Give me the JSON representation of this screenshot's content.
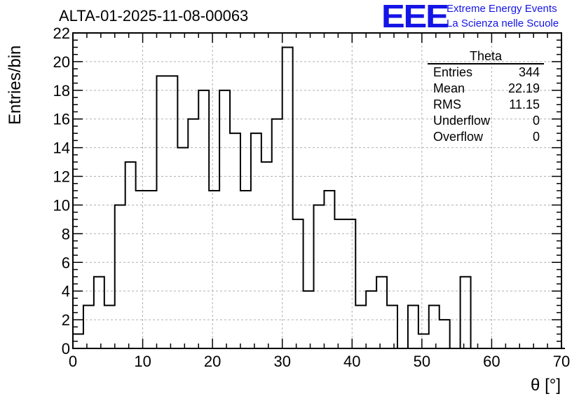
{
  "header": {
    "title": "ALTA-01-2025-11-08-00063",
    "logo_text": "EEE",
    "org_line1": "Extreme Energy Events",
    "org_line2": "La Scienza nelle Scuole"
  },
  "stats_box": {
    "title": "Theta",
    "rows": [
      {
        "label": "Entries",
        "value": "344"
      },
      {
        "label": "Mean",
        "value": "22.19"
      },
      {
        "label": "RMS",
        "value": "11.15"
      },
      {
        "label": "Underflow",
        "value": "0"
      },
      {
        "label": "Overflow",
        "value": "0"
      }
    ]
  },
  "colors": {
    "accent": "#1414e6",
    "line": "#000000",
    "grid": "#b0b0b0"
  },
  "chart_data": {
    "type": "bar",
    "style": "step-histogram",
    "title": "ALTA-01-2025-11-08-00063",
    "xlabel": "θ [°]",
    "ylabel": "Entries/bin",
    "xlim": [
      0,
      70
    ],
    "ylim": [
      0,
      22
    ],
    "grid": true,
    "bin_width": 1.5,
    "x_ticks": [
      0,
      10,
      20,
      30,
      40,
      50,
      60,
      70
    ],
    "y_ticks": [
      0,
      2,
      4,
      6,
      8,
      10,
      12,
      14,
      16,
      18,
      20,
      22
    ],
    "bin_edges_start": 0,
    "values": [
      1,
      3,
      5,
      3,
      10,
      13,
      11,
      11,
      19,
      19,
      14,
      16,
      18,
      11,
      18,
      15,
      11,
      15,
      13,
      16,
      21,
      9,
      4,
      10,
      11,
      9,
      9,
      3,
      4,
      5,
      3,
      0,
      3,
      1,
      3,
      2,
      0,
      5,
      0,
      0,
      0,
      0,
      0,
      0,
      0,
      0,
      0
    ]
  }
}
